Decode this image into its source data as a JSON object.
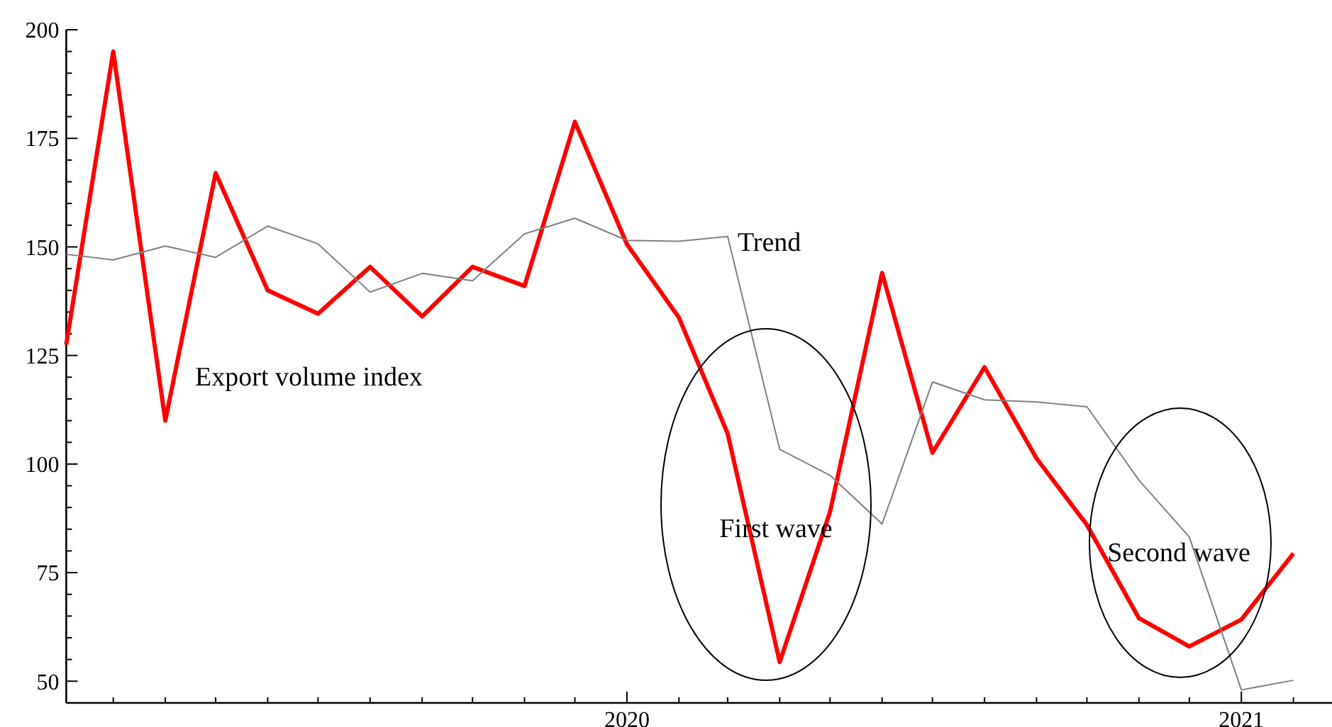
{
  "chart_data": {
    "type": "line",
    "x": [
      "2019-02",
      "2019-03",
      "2019-04",
      "2019-05",
      "2019-06",
      "2019-07",
      "2019-08",
      "2019-09",
      "2019-10",
      "2019-11",
      "2019-12",
      "2020-01",
      "2020-02",
      "2020-03",
      "2020-04",
      "2020-05",
      "2020-06",
      "2020-07",
      "2020-08",
      "2020-09",
      "2020-10",
      "2020-11",
      "2020-12",
      "2021-01",
      "2021-02"
    ],
    "series": [
      {
        "name": "Export volume index",
        "color": "#ff0000",
        "values": [
          127.5,
          195,
          110,
          167,
          140,
          134.6,
          145.4,
          134,
          145.4,
          141,
          178.8,
          150.6,
          133.7,
          107,
          54.4,
          89,
          144,
          102.6,
          122.3,
          101.3,
          86,
          64.5,
          58,
          64.2,
          79.4
        ]
      },
      {
        "name": "Trend",
        "color": "#808080",
        "values": [
          148.3,
          147,
          150.2,
          147.6,
          154.8,
          150.7,
          139.6,
          143.9,
          142.2,
          153,
          156.6,
          151.5,
          151.3,
          152.4,
          103.4,
          97.4,
          86.2,
          118.9,
          114.8,
          114.3,
          113.2,
          96.3,
          83.2,
          48,
          50.2
        ]
      }
    ],
    "xlim": [
      "2019-02-01",
      "2021-02-24"
    ],
    "xticks": [
      {
        "value": "2019-03",
        "label": null
      },
      {
        "value": "2019-04",
        "label": null
      },
      {
        "value": "2019-05",
        "label": null
      },
      {
        "value": "2019-06",
        "label": null
      },
      {
        "value": "2019-07",
        "label": null
      },
      {
        "value": "2019-08",
        "label": null
      },
      {
        "value": "2019-09",
        "label": null
      },
      {
        "value": "2019-10",
        "label": null
      },
      {
        "value": "2019-11",
        "label": null
      },
      {
        "value": "2019-12",
        "label": null
      },
      {
        "value": "2020-01",
        "label": "2020"
      },
      {
        "value": "2020-02",
        "label": null
      },
      {
        "value": "2020-03",
        "label": null
      },
      {
        "value": "2020-04",
        "label": null
      },
      {
        "value": "2020-05",
        "label": null
      },
      {
        "value": "2020-06",
        "label": null
      },
      {
        "value": "2020-07",
        "label": null
      },
      {
        "value": "2020-08",
        "label": null
      },
      {
        "value": "2020-09",
        "label": null
      },
      {
        "value": "2020-10",
        "label": null
      },
      {
        "value": "2020-11",
        "label": null
      },
      {
        "value": "2020-12",
        "label": null
      },
      {
        "value": "2021-01",
        "label": "2021"
      },
      {
        "value": "2021-02",
        "label": null
      }
    ],
    "ylim": [
      45,
      200
    ],
    "yticks": [
      50,
      {
        "value": 55,
        "label": null
      },
      {
        "value": 60,
        "label": null
      },
      {
        "value": 65,
        "label": null
      },
      {
        "value": 70,
        "label": null
      },
      75,
      {
        "value": 80,
        "label": null
      },
      {
        "value": 85,
        "label": null
      },
      {
        "value": 90,
        "label": null
      },
      {
        "value": 95,
        "label": null
      },
      100,
      {
        "value": 105,
        "label": null
      },
      {
        "value": 110,
        "label": null
      },
      {
        "value": 115,
        "label": null
      },
      {
        "value": 120,
        "label": null
      },
      125,
      {
        "value": 130,
        "label": null
      },
      {
        "value": 135,
        "label": null
      },
      {
        "value": 140,
        "label": null
      },
      {
        "value": 145,
        "label": null
      },
      150,
      {
        "value": 155,
        "label": null
      },
      {
        "value": 160,
        "label": null
      },
      {
        "value": 165,
        "label": null
      },
      {
        "value": 170,
        "label": null
      },
      175,
      {
        "value": 180,
        "label": null
      },
      {
        "value": 185,
        "label": null
      },
      {
        "value": 190,
        "label": null
      },
      {
        "value": 195,
        "label": null
      },
      200
    ],
    "annotations": [
      "First wave",
      "Second wave"
    ],
    "legend": false,
    "grid": false,
    "marker": "none",
    "line_style": "solid"
  }
}
